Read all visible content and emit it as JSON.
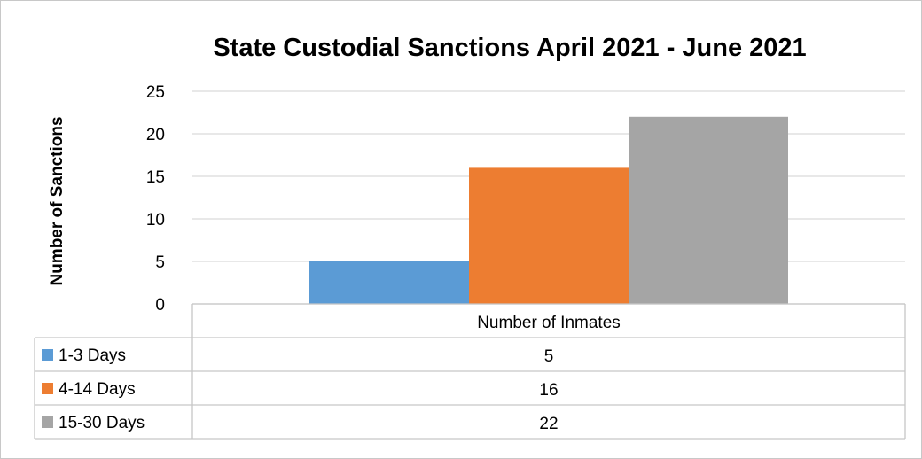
{
  "chart_data": {
    "type": "bar",
    "title": "State Custodial Sanctions April 2021 - June 2021",
    "xlabel": "",
    "ylabel": "Number of Sanctions",
    "ylim": [
      0,
      25
    ],
    "yticks": [
      0,
      5,
      10,
      15,
      20,
      25
    ],
    "grid": true,
    "legend": "data-table",
    "categories": [
      "Number of Inmates"
    ],
    "series": [
      {
        "name": "1-3 Days",
        "values": [
          5
        ],
        "color": "#5b9bd5"
      },
      {
        "name": "4-14 Days",
        "values": [
          16
        ],
        "color": "#ed7d31"
      },
      {
        "name": "15-30 Days",
        "values": [
          22
        ],
        "color": "#a5a5a5"
      }
    ]
  }
}
